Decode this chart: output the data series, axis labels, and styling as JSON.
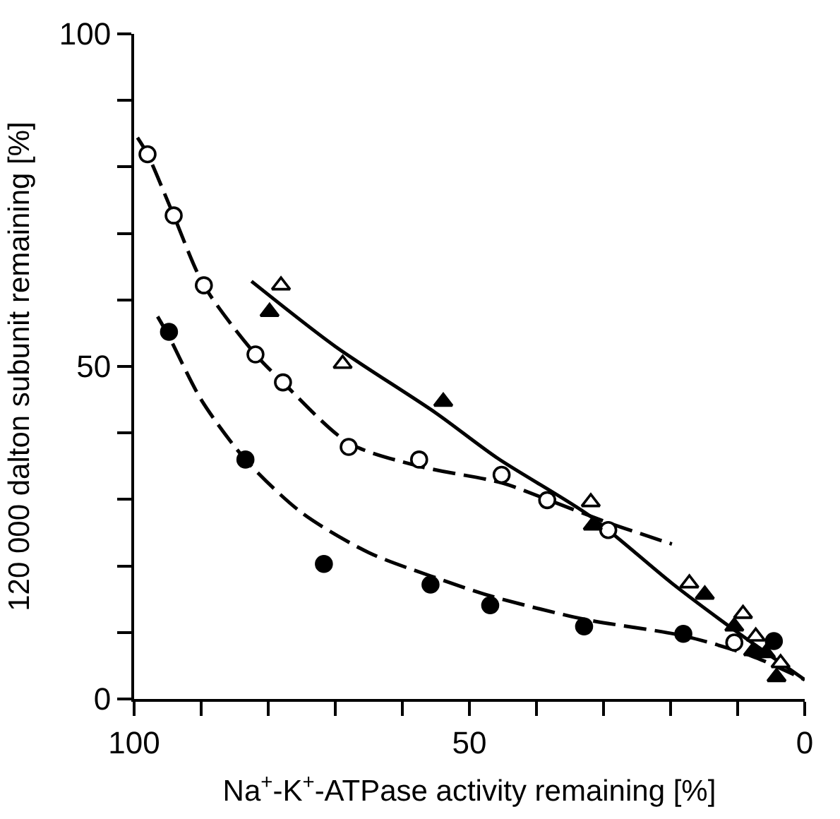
{
  "chart_data": {
    "type": "scatter",
    "xlabel": "Na$^{+}$-K$^{+}$-ATPase activity remaining [%]",
    "ylabel": "120 000 dalton subunit remaining [%]",
    "xlim": [
      100,
      0
    ],
    "ylim": [
      0,
      100
    ],
    "xticks": [
      100,
      {
        "value": 90,
        "label": null
      },
      {
        "value": 80,
        "label": null
      },
      {
        "value": 70,
        "label": null
      },
      {
        "value": 60,
        "label": null
      },
      50,
      {
        "value": 40,
        "label": null
      },
      {
        "value": 30,
        "label": null
      },
      {
        "value": 20,
        "label": null
      },
      {
        "value": 10,
        "label": null
      },
      0
    ],
    "yticks": [
      0,
      {
        "value": 10,
        "label": null
      },
      {
        "value": 20,
        "label": null
      },
      {
        "value": 30,
        "label": null
      },
      {
        "value": 40,
        "label": null
      },
      50,
      {
        "value": 60,
        "label": null
      },
      {
        "value": 70,
        "label": null
      },
      {
        "value": 80,
        "label": null
      },
      {
        "value": 90,
        "label": null
      },
      100
    ],
    "series": [
      {
        "type": "line",
        "marker": "none",
        "line_style": "dashed",
        "color": "#000000",
        "x": [
          99.5,
          98.0,
          94.1,
          89.6,
          81.9,
          77.8,
          68.0,
          57.5,
          45.2,
          38.4,
          29.3,
          19.8
        ],
        "values": [
          84.4,
          81.9,
          72.7,
          62.2,
          51.8,
          47.6,
          38.5,
          35.0,
          32.5,
          30.0,
          26.5,
          23.3
        ]
      },
      {
        "type": "line",
        "marker": "none",
        "line_style": "dashed",
        "color": "#000000",
        "x": [
          96.5,
          94.8,
          90.0,
          83.4,
          75.0,
          65.0,
          55.8,
          46.9,
          32.9,
          18.1,
          8.0,
          0.0
        ],
        "values": [
          57.5,
          54.5,
          45.0,
          36.0,
          28.0,
          22.0,
          18.5,
          15.5,
          12.0,
          9.5,
          6.5,
          2.9
        ]
      },
      {
        "type": "line",
        "marker": "none",
        "line_style": "solid",
        "color": "#000000",
        "x": [
          82.5,
          70.0,
          55.0,
          45.8,
          32.0,
          19.8,
          10.0,
          0.0
        ],
        "values": [
          62.8,
          53.0,
          43.0,
          36.2,
          27.5,
          17.4,
          10.0,
          2.9
        ]
      },
      {
        "marker": "circle",
        "color": "#ffffff",
        "x": [
          98.0,
          94.1,
          89.6,
          81.9,
          77.8,
          68.0,
          57.5,
          45.2,
          38.4,
          29.3,
          10.5
        ],
        "values": [
          81.9,
          72.7,
          62.2,
          51.8,
          47.6,
          37.9,
          36.0,
          33.7,
          29.9,
          25.4,
          8.5
        ]
      },
      {
        "marker": "circle",
        "color": "#000000",
        "x": [
          94.8,
          83.4,
          71.7,
          55.8,
          46.9,
          32.9,
          18.1,
          4.6
        ],
        "values": [
          55.2,
          36.0,
          20.3,
          17.2,
          14.1,
          10.9,
          9.8,
          8.7
        ]
      },
      {
        "marker": "triangle",
        "color": "#ffffff",
        "x": [
          78.1,
          68.9,
          31.9,
          17.2,
          9.2,
          7.3,
          3.6
        ],
        "values": [
          62.2,
          50.4,
          29.6,
          17.4,
          12.8,
          9.4,
          5.4
        ]
      },
      {
        "marker": "triangle",
        "color": "#000000",
        "x": [
          79.8,
          53.9,
          31.6,
          14.9,
          10.5,
          7.7,
          5.8,
          4.2
        ],
        "values": [
          58.2,
          44.7,
          26.1,
          15.7,
          10.9,
          7.2,
          6.9,
          3.3
        ]
      }
    ]
  }
}
